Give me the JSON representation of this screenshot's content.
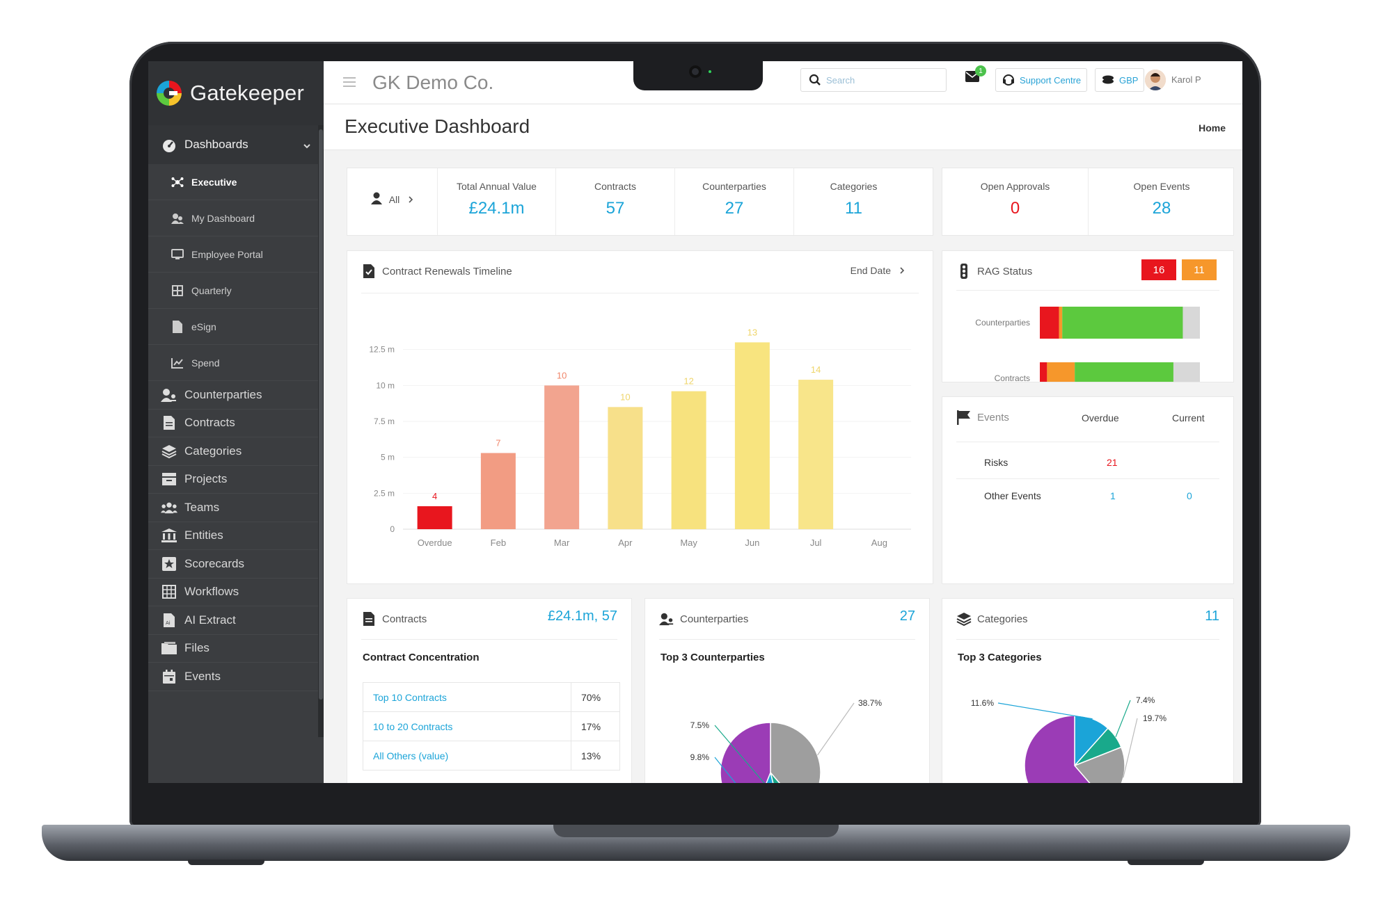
{
  "brand": {
    "name": "Gatekeeper"
  },
  "sidebar": {
    "group": {
      "label": "Dashboards"
    },
    "sub_items": [
      {
        "label": "Executive",
        "icon": "network-icon",
        "active": true
      },
      {
        "label": "My Dashboard",
        "icon": "users-icon"
      },
      {
        "label": "Employee Portal",
        "icon": "monitor-icon"
      },
      {
        "label": "Quarterly",
        "icon": "grid-icon"
      },
      {
        "label": "eSign",
        "icon": "file-icon"
      },
      {
        "label": "Spend",
        "icon": "line-chart-icon"
      }
    ],
    "items": [
      {
        "label": "Counterparties",
        "icon": "user-group-icon"
      },
      {
        "label": "Contracts",
        "icon": "document-icon"
      },
      {
        "label": "Categories",
        "icon": "layers-icon"
      },
      {
        "label": "Projects",
        "icon": "folder-stack-icon"
      },
      {
        "label": "Teams",
        "icon": "team-icon"
      },
      {
        "label": "Entities",
        "icon": "bank-icon"
      },
      {
        "label": "Scorecards",
        "icon": "star-icon"
      },
      {
        "label": "Workflows",
        "icon": "workflow-icon"
      },
      {
        "label": "AI Extract",
        "icon": "ai-document-icon"
      },
      {
        "label": "Files",
        "icon": "folder-icon"
      },
      {
        "label": "Events",
        "icon": "calendar-icon"
      }
    ]
  },
  "topbar": {
    "company": "GK Demo Co.",
    "search_placeholder": "Search",
    "mail_badge": "1",
    "support_label": "Support Centre",
    "currency_label": "GBP",
    "user_name": "Karol P"
  },
  "page": {
    "title": "Executive Dashboard",
    "breadcrumb": "Home"
  },
  "summary": {
    "filter_label": "All",
    "stats": [
      {
        "label": "Total Annual Value",
        "value": "£24.1m"
      },
      {
        "label": "Contracts",
        "value": "57"
      },
      {
        "label": "Counterparties",
        "value": "27"
      },
      {
        "label": "Categories",
        "value": "11"
      }
    ],
    "approvals": {
      "label": "Open Approvals",
      "value": "0"
    },
    "events": {
      "label": "Open Events",
      "value": "28"
    }
  },
  "renewals": {
    "title": "Contract Renewals Timeline",
    "sort_label": "End Date"
  },
  "chart_data": [
    {
      "type": "bar",
      "title": "Contract Renewals Timeline",
      "categories": [
        "Overdue",
        "Feb",
        "Mar",
        "Apr",
        "May",
        "Jun",
        "Jul",
        "Aug"
      ],
      "values": [
        1.6,
        5.3,
        10.0,
        8.5,
        9.6,
        13.0,
        10.4,
        0
      ],
      "data_labels": [
        "4",
        "7",
        "10",
        "10",
        "12",
        "13",
        "14",
        ""
      ],
      "colors": [
        "#e8161e",
        "#f29c83",
        "#f2a48f",
        "#f7e08a",
        "#f7e27e",
        "#f8e47f",
        "#f8e58a",
        "#f8e58a"
      ],
      "y_ticks": [
        "0",
        "2.5 m",
        "5 m",
        "7.5 m",
        "10 m",
        "12.5 m"
      ],
      "ylim": [
        0,
        15
      ]
    },
    {
      "type": "bar",
      "title": "RAG Status",
      "stacked": true,
      "categories": [
        "Counterparties",
        "Contracts"
      ],
      "series": [
        {
          "color": "#e8161e",
          "values": [
            18,
            6
          ]
        },
        {
          "color": "#f6972b",
          "values": [
            3,
            23
          ]
        },
        {
          "color": "#5cc93e",
          "values": [
            113,
            82
          ]
        },
        {
          "color": "#d8d8d8",
          "values": [
            16,
            22
          ]
        }
      ]
    },
    {
      "type": "pie",
      "title": "Top 3 Counterparties",
      "values": [
        38.7,
        7.5,
        9.8,
        44.0
      ],
      "labels": [
        "38.7%",
        "7.5%",
        "9.8%",
        ""
      ],
      "colors": [
        "#9e9e9e",
        "#19a98b",
        "#1ba4d8",
        "#9b3cb6"
      ]
    },
    {
      "type": "pie",
      "title": "Top 3 Categories",
      "values": [
        11.6,
        7.4,
        19.7,
        61.3
      ],
      "labels": [
        "11.6%",
        "7.4%",
        "19.7%",
        ""
      ],
      "colors": [
        "#1ba4d8",
        "#19a98b",
        "#9e9e9e",
        "#9b3cb6"
      ]
    }
  ],
  "rag": {
    "title": "RAG Status",
    "red_count": "16",
    "amber_count": "11"
  },
  "events_panel": {
    "title": "Events",
    "col_overdue": "Overdue",
    "col_current": "Current",
    "rows": [
      {
        "label": "Risks",
        "overdue": "21",
        "current": ""
      },
      {
        "label": "Other Events",
        "overdue": "1",
        "current": "0"
      }
    ]
  },
  "contracts_card": {
    "title": "Contracts",
    "summary": "£24.1m, 57",
    "subtitle": "Contract Concentration",
    "rows": [
      {
        "label": "Top 10 Contracts",
        "pct": "70%"
      },
      {
        "label": "10 to 20 Contracts",
        "pct": "17%"
      },
      {
        "label": "All Others (value)",
        "pct": "13%"
      }
    ]
  },
  "counterparties_card": {
    "title": "Counterparties",
    "count": "27",
    "subtitle": "Top 3 Counterparties"
  },
  "categories_card": {
    "title": "Categories",
    "count": "11",
    "subtitle": "Top 3 Categories"
  },
  "colors": {
    "accent": "#1ba4d8",
    "danger": "#e8161e",
    "warning": "#f6972b",
    "success": "#5cc93e",
    "sidebar": "#3b3d40"
  }
}
